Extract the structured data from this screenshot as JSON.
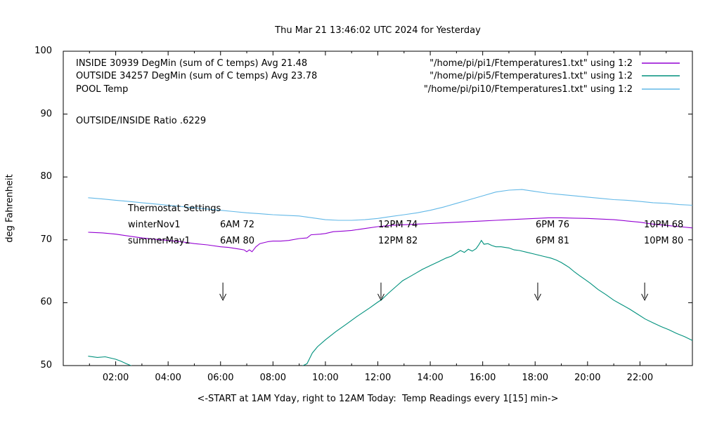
{
  "title": "Thu Mar 21 13:46:02 UTC 2024 for Yesterday",
  "legend": {
    "rows": [
      {
        "label": "INSIDE 30939 DegMin (sum of C temps) Avg 21.48",
        "file": "\"/home/pi/pi1/Ftemperatures1.txt\" using 1:2"
      },
      {
        "label": "OUTSIDE 34257 DegMin (sum of C temps) Avg 23.78",
        "file": "\"/home/pi/pi5/Ftemperatures1.txt\" using 1:2"
      },
      {
        "label": "POOL Temp",
        "file": "\"/home/pi/pi10/Ftemperatures1.txt\" using 1:2"
      }
    ]
  },
  "ratio_text": "OUTSIDE/INSIDE Ratio .6229",
  "thermostat": {
    "title": "Thermostat Settings",
    "rows": [
      {
        "name": "winterNov1",
        "cells": [
          "6AM 72",
          "12PM 74",
          "6PM 76",
          "10PM 68"
        ]
      },
      {
        "name": "summerMay1",
        "cells": [
          "6AM 80",
          "12PM 82",
          "6PM 81",
          "10PM 80"
        ]
      }
    ]
  },
  "chart_data": {
    "type": "line",
    "title": "Thu Mar 21 13:46:02 UTC 2024 for Yesterday",
    "xlabel": "<-START at 1AM Yday, right to 12AM Today:  Temp Readings every 1[15] min->",
    "ylabel": "deg Fahrenheit",
    "xlim": [
      0,
      24
    ],
    "ylim": [
      50,
      100
    ],
    "grid": false,
    "legend_position": "top-right-inside",
    "x_ticks": [
      {
        "hour": 2,
        "label": "02:00"
      },
      {
        "hour": 4,
        "label": "04:00"
      },
      {
        "hour": 6,
        "label": "06:00"
      },
      {
        "hour": 8,
        "label": "08:00"
      },
      {
        "hour": 10,
        "label": "10:00"
      },
      {
        "hour": 12,
        "label": "12:00"
      },
      {
        "hour": 14,
        "label": "14:00"
      },
      {
        "hour": 16,
        "label": "16:00"
      },
      {
        "hour": 18,
        "label": "18:00"
      },
      {
        "hour": 20,
        "label": "20:00"
      },
      {
        "hour": 22,
        "label": "22:00"
      }
    ],
    "x_minor_every_hours": 1,
    "y_ticks": [
      {
        "value": 100,
        "label": "100"
      },
      {
        "value": 90,
        "label": "90"
      },
      {
        "value": 80,
        "label": "80"
      },
      {
        "value": 70,
        "label": "70"
      },
      {
        "value": 60,
        "label": "60"
      },
      {
        "value": 50,
        "label": "50"
      }
    ],
    "series": [
      {
        "name": "INSIDE",
        "color": "#9400d3",
        "points": [
          [
            0.95,
            71.2
          ],
          [
            1.5,
            71.1
          ],
          [
            2.0,
            70.9
          ],
          [
            2.5,
            70.6
          ],
          [
            3.0,
            70.3
          ],
          [
            3.5,
            70.1
          ],
          [
            4.0,
            69.9
          ],
          [
            4.5,
            69.7
          ],
          [
            5.0,
            69.4
          ],
          [
            5.5,
            69.2
          ],
          [
            6.0,
            68.9
          ],
          [
            6.3,
            68.8
          ],
          [
            6.6,
            68.6
          ],
          [
            6.9,
            68.4
          ],
          [
            7.0,
            68.1
          ],
          [
            7.1,
            68.4
          ],
          [
            7.2,
            68.1
          ],
          [
            7.35,
            68.9
          ],
          [
            7.5,
            69.4
          ],
          [
            7.8,
            69.7
          ],
          [
            8.0,
            69.8
          ],
          [
            8.3,
            69.8
          ],
          [
            8.6,
            69.9
          ],
          [
            9.0,
            70.2
          ],
          [
            9.3,
            70.3
          ],
          [
            9.45,
            70.8
          ],
          [
            9.8,
            70.9
          ],
          [
            10.0,
            71.0
          ],
          [
            10.3,
            71.3
          ],
          [
            10.7,
            71.4
          ],
          [
            11.0,
            71.5
          ],
          [
            11.5,
            71.8
          ],
          [
            12.0,
            72.1
          ],
          [
            12.5,
            72.3
          ],
          [
            13.0,
            72.4
          ],
          [
            13.5,
            72.5
          ],
          [
            14.0,
            72.6
          ],
          [
            14.5,
            72.7
          ],
          [
            15.0,
            72.8
          ],
          [
            15.5,
            72.9
          ],
          [
            16.0,
            73.0
          ],
          [
            16.5,
            73.1
          ],
          [
            17.0,
            73.2
          ],
          [
            17.5,
            73.3
          ],
          [
            18.0,
            73.4
          ],
          [
            18.5,
            73.5
          ],
          [
            19.0,
            73.5
          ],
          [
            19.5,
            73.45
          ],
          [
            20.0,
            73.4
          ],
          [
            20.5,
            73.3
          ],
          [
            21.0,
            73.2
          ],
          [
            21.5,
            73.0
          ],
          [
            22.0,
            72.8
          ],
          [
            22.5,
            72.5
          ],
          [
            23.0,
            72.3
          ],
          [
            23.5,
            72.1
          ],
          [
            24.0,
            71.9
          ]
        ]
      },
      {
        "name": "OUTSIDE",
        "color": "#00917d",
        "points": [
          [
            0.95,
            51.5
          ],
          [
            1.3,
            51.3
          ],
          [
            1.6,
            51.4
          ],
          [
            2.0,
            51.0
          ],
          [
            2.2,
            50.7
          ],
          [
            2.4,
            50.3
          ],
          [
            2.7,
            49.8
          ],
          [
            3.0,
            49.4
          ],
          [
            3.5,
            48.9
          ],
          [
            4.0,
            48.6
          ],
          [
            5.0,
            48.2
          ],
          [
            6.0,
            47.9
          ],
          [
            7.0,
            48.1
          ],
          [
            8.0,
            48.6
          ],
          [
            8.6,
            49.2
          ],
          [
            9.0,
            49.7
          ],
          [
            9.3,
            50.3
          ],
          [
            9.5,
            52.0
          ],
          [
            9.7,
            53.0
          ],
          [
            10.0,
            54.1
          ],
          [
            10.4,
            55.4
          ],
          [
            10.8,
            56.6
          ],
          [
            11.2,
            57.8
          ],
          [
            11.45,
            58.5
          ],
          [
            11.7,
            59.2
          ],
          [
            12.0,
            60.1
          ],
          [
            12.15,
            60.5
          ],
          [
            12.4,
            61.5
          ],
          [
            12.7,
            62.6
          ],
          [
            12.95,
            63.5
          ],
          [
            13.2,
            64.1
          ],
          [
            13.45,
            64.7
          ],
          [
            13.7,
            65.3
          ],
          [
            14.0,
            65.9
          ],
          [
            14.3,
            66.5
          ],
          [
            14.6,
            67.1
          ],
          [
            14.8,
            67.4
          ],
          [
            15.0,
            67.9
          ],
          [
            15.15,
            68.3
          ],
          [
            15.3,
            68.0
          ],
          [
            15.45,
            68.5
          ],
          [
            15.6,
            68.2
          ],
          [
            15.75,
            68.6
          ],
          [
            15.85,
            69.2
          ],
          [
            15.95,
            69.9
          ],
          [
            16.05,
            69.3
          ],
          [
            16.2,
            69.4
          ],
          [
            16.35,
            69.1
          ],
          [
            16.5,
            68.9
          ],
          [
            16.7,
            68.9
          ],
          [
            17.0,
            68.7
          ],
          [
            17.2,
            68.4
          ],
          [
            17.4,
            68.3
          ],
          [
            17.7,
            68.0
          ],
          [
            18.0,
            67.7
          ],
          [
            18.3,
            67.4
          ],
          [
            18.6,
            67.1
          ],
          [
            18.8,
            66.8
          ],
          [
            19.0,
            66.4
          ],
          [
            19.15,
            66.0
          ],
          [
            19.3,
            65.6
          ],
          [
            19.5,
            64.9
          ],
          [
            19.7,
            64.3
          ],
          [
            19.9,
            63.7
          ],
          [
            20.1,
            63.1
          ],
          [
            20.4,
            62.1
          ],
          [
            20.7,
            61.3
          ],
          [
            21.0,
            60.4
          ],
          [
            21.3,
            59.7
          ],
          [
            21.6,
            59.0
          ],
          [
            21.9,
            58.2
          ],
          [
            22.2,
            57.4
          ],
          [
            22.5,
            56.8
          ],
          [
            22.8,
            56.2
          ],
          [
            23.1,
            55.7
          ],
          [
            23.4,
            55.1
          ],
          [
            23.7,
            54.6
          ],
          [
            24.0,
            54.0
          ]
        ]
      },
      {
        "name": "POOL",
        "color": "#62b8e7",
        "points": [
          [
            0.95,
            76.7
          ],
          [
            1.5,
            76.5
          ],
          [
            2.0,
            76.3
          ],
          [
            2.5,
            76.1
          ],
          [
            3.0,
            75.9
          ],
          [
            3.5,
            75.7
          ],
          [
            4.0,
            75.5
          ],
          [
            4.5,
            75.3
          ],
          [
            5.0,
            75.1
          ],
          [
            5.5,
            74.9
          ],
          [
            6.0,
            74.7
          ],
          [
            6.5,
            74.5
          ],
          [
            7.0,
            74.3
          ],
          [
            7.5,
            74.15
          ],
          [
            8.0,
            74.0
          ],
          [
            8.5,
            73.9
          ],
          [
            9.0,
            73.8
          ],
          [
            9.5,
            73.5
          ],
          [
            10.0,
            73.2
          ],
          [
            10.5,
            73.1
          ],
          [
            11.0,
            73.1
          ],
          [
            11.5,
            73.2
          ],
          [
            12.0,
            73.4
          ],
          [
            12.5,
            73.7
          ],
          [
            13.0,
            74.0
          ],
          [
            13.5,
            74.3
          ],
          [
            14.0,
            74.7
          ],
          [
            14.5,
            75.2
          ],
          [
            15.0,
            75.8
          ],
          [
            15.5,
            76.4
          ],
          [
            16.0,
            77.0
          ],
          [
            16.5,
            77.6
          ],
          [
            17.0,
            77.9
          ],
          [
            17.5,
            78.0
          ],
          [
            18.0,
            77.7
          ],
          [
            18.5,
            77.4
          ],
          [
            19.0,
            77.2
          ],
          [
            19.5,
            77.0
          ],
          [
            20.0,
            76.8
          ],
          [
            20.5,
            76.6
          ],
          [
            21.0,
            76.4
          ],
          [
            21.5,
            76.3
          ],
          [
            22.0,
            76.1
          ],
          [
            22.5,
            75.9
          ],
          [
            23.0,
            75.8
          ],
          [
            23.5,
            75.6
          ],
          [
            24.0,
            75.5
          ]
        ]
      }
    ],
    "arrows": [
      {
        "x_hour": 6.09,
        "temp_from": 63.2,
        "temp_to": 60.4
      },
      {
        "x_hour": 12.12,
        "temp_from": 63.2,
        "temp_to": 60.4
      },
      {
        "x_hour": 18.1,
        "temp_from": 63.2,
        "temp_to": 60.4
      },
      {
        "x_hour": 22.18,
        "temp_from": 63.2,
        "temp_to": 60.4
      }
    ],
    "axis_color": "#000000"
  }
}
